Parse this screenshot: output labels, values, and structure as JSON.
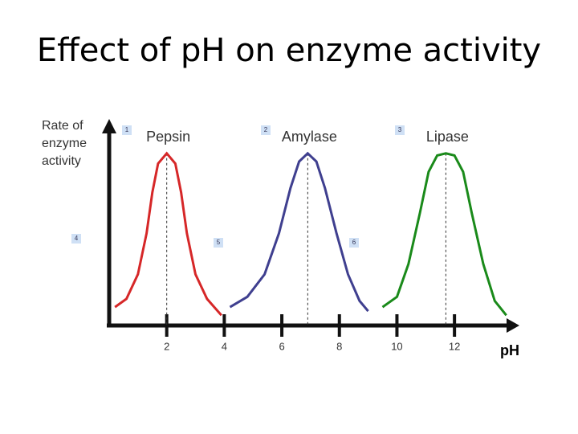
{
  "chart_data": {
    "type": "line",
    "title": "Effect of pH on enzyme activity",
    "y_label": "Rate of enzyme activity",
    "x_label": "pH",
    "xlim": [
      0,
      14.2
    ],
    "ylim": [
      0,
      1
    ],
    "xticks": [
      2,
      4,
      6,
      8,
      10,
      12
    ],
    "series": [
      {
        "name": "Pepsin",
        "color": "#d62728",
        "x": [
          0.2,
          0.6,
          1.0,
          1.3,
          1.5,
          1.7,
          2.0,
          2.3,
          2.5,
          2.7,
          3.0,
          3.4,
          3.9
        ],
        "values": [
          0.09,
          0.13,
          0.25,
          0.45,
          0.65,
          0.79,
          0.84,
          0.79,
          0.65,
          0.45,
          0.25,
          0.13,
          0.05
        ]
      },
      {
        "name": "Amylase",
        "color": "#3f3f8f",
        "x": [
          4.2,
          4.8,
          5.4,
          5.9,
          6.3,
          6.6,
          6.9,
          7.2,
          7.5,
          7.9,
          8.3,
          8.7,
          9.0
        ],
        "values": [
          0.09,
          0.14,
          0.25,
          0.45,
          0.67,
          0.8,
          0.84,
          0.8,
          0.67,
          0.45,
          0.25,
          0.12,
          0.07
        ]
      },
      {
        "name": "Lipase",
        "color": "#1a8a1a",
        "x": [
          9.5,
          10.0,
          10.4,
          10.8,
          11.1,
          11.4,
          11.7,
          12.0,
          12.3,
          12.6,
          13.0,
          13.4,
          13.8
        ],
        "values": [
          0.09,
          0.14,
          0.3,
          0.55,
          0.75,
          0.83,
          0.84,
          0.83,
          0.75,
          0.55,
          0.3,
          0.12,
          0.05
        ]
      }
    ],
    "annotations": [
      "1",
      "2",
      "3",
      "4",
      "5",
      "6"
    ]
  }
}
